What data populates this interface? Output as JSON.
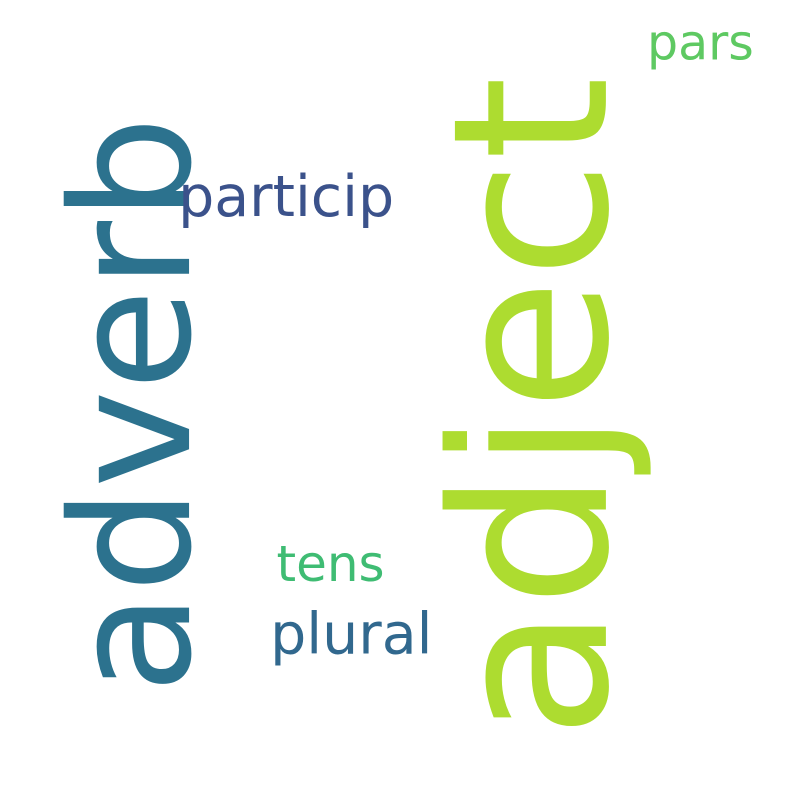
{
  "words": [
    {
      "text": "adverb",
      "color": "#2c728e",
      "orientation": "vertical"
    },
    {
      "text": "adject",
      "color": "#addc30",
      "orientation": "vertical"
    },
    {
      "text": "particip",
      "color": "#3b528b",
      "orientation": "horizontal"
    },
    {
      "text": "pars",
      "color": "#5ec962",
      "orientation": "horizontal"
    },
    {
      "text": "tens",
      "color": "#3fbc73",
      "orientation": "horizontal"
    },
    {
      "text": "plural",
      "color": "#31688e",
      "orientation": "horizontal"
    }
  ]
}
